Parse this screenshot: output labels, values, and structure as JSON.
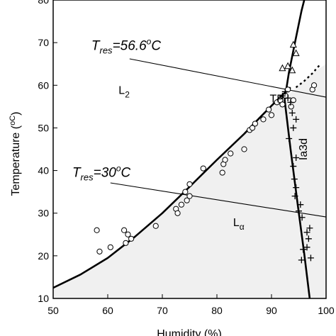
{
  "chart_data": {
    "type": "scatter",
    "xlabel": "Humidity (%)",
    "ylabel": "Temperature (",
    "ylabel_unit": "oC",
    "ylabel_close": ")",
    "xlim": [
      50,
      100
    ],
    "ylim": [
      10,
      80
    ],
    "x_ticks": [
      50,
      60,
      70,
      80,
      90,
      100
    ],
    "y_ticks": [
      10,
      20,
      30,
      40,
      50,
      60,
      70,
      80
    ],
    "grid": false,
    "colors": {
      "fill": "#f0f0f0",
      "line": "#000000",
      "marker": "#000000"
    },
    "regions": [
      {
        "label": "L",
        "sub": "2",
        "x": 63,
        "y": 58
      },
      {
        "label": "L",
        "sub": "α",
        "x": 84,
        "y": 27
      },
      {
        "label": "TP",
        "x": 91,
        "y": 56
      },
      {
        "label": "Ia3d",
        "x": 96.5,
        "y": 45,
        "rotate": true
      }
    ],
    "annotations": [
      {
        "pre": "T",
        "sub": "res",
        "post": "=56.6",
        "sup": "o",
        "end": "C",
        "x": 57,
        "y": 68.3
      },
      {
        "pre": "T",
        "sub": "res",
        "post": "=30",
        "sup": "o",
        "end": "C",
        "x": 53.5,
        "y": 38.5
      }
    ],
    "boundaries": {
      "L2_La": [
        [
          50,
          12.5
        ],
        [
          55,
          15.6
        ],
        [
          60,
          19.5
        ],
        [
          65,
          24.5
        ],
        [
          70,
          30
        ],
        [
          75,
          36.2
        ],
        [
          80,
          42.5
        ],
        [
          85,
          48.6
        ],
        [
          88,
          52.6
        ],
        [
          90,
          55.2
        ],
        [
          92,
          57.7
        ],
        [
          93.5,
          59.5
        ]
      ],
      "L2_right": [
        [
          92.4,
          56.6
        ],
        [
          93.2,
          63
        ],
        [
          94.3,
          70
        ],
        [
          95.5,
          77.5
        ],
        [
          96,
          80
        ]
      ],
      "La_Ia3d": [
        [
          92.4,
          56.6
        ],
        [
          93.5,
          45
        ],
        [
          94.8,
          32
        ],
        [
          96,
          20.5
        ],
        [
          97,
          10
        ]
      ],
      "dashed": [
        [
          94.5,
          59.5
        ],
        [
          96,
          61
        ],
        [
          97.5,
          62.8
        ],
        [
          99,
          65
        ]
      ]
    },
    "tie_lines": [
      {
        "name": "T=56.6",
        "points": [
          [
            64,
            66.2
          ],
          [
            100,
            57.2
          ]
        ]
      },
      {
        "name": "T=30",
        "points": [
          [
            60.5,
            37.1
          ],
          [
            100,
            29.1
          ]
        ]
      }
    ],
    "series": [
      {
        "marker": "circle",
        "points": [
          [
            58,
            26
          ],
          [
            58.5,
            21
          ],
          [
            60.5,
            22
          ],
          [
            63,
            26
          ],
          [
            63.3,
            23
          ],
          [
            63.7,
            25
          ],
          [
            64.3,
            24
          ],
          [
            68.8,
            27
          ],
          [
            72.5,
            31
          ],
          [
            72.8,
            30
          ],
          [
            73.5,
            32
          ],
          [
            74.2,
            35
          ],
          [
            74.5,
            33
          ],
          [
            75,
            34
          ],
          [
            75,
            36.8
          ],
          [
            77.5,
            40.5
          ],
          [
            81,
            39.5
          ],
          [
            81.2,
            41.5
          ],
          [
            81.5,
            42.5
          ],
          [
            82.5,
            44
          ],
          [
            85,
            45
          ],
          [
            86,
            49.5
          ],
          [
            86.5,
            50
          ],
          [
            87,
            51
          ],
          [
            88.5,
            52
          ],
          [
            89.5,
            54.3
          ],
          [
            90,
            53
          ],
          [
            91,
            56
          ],
          [
            91.6,
            56.5
          ],
          [
            92,
            55.5
          ],
          [
            92.6,
            57.5
          ],
          [
            93,
            59
          ],
          [
            93.6,
            55
          ],
          [
            94,
            56.5
          ],
          [
            97.5,
            59
          ],
          [
            97.8,
            60
          ]
        ]
      },
      {
        "marker": "triangle",
        "points": [
          [
            92,
            64
          ],
          [
            93,
            64.5
          ],
          [
            94,
            69.5
          ],
          [
            94.5,
            67.5
          ],
          [
            93.8,
            63.5
          ]
        ]
      },
      {
        "marker": "plus",
        "points": [
          [
            92,
            57.5
          ],
          [
            92.5,
            58.5
          ],
          [
            93,
            57
          ],
          [
            93.5,
            56
          ],
          [
            93.8,
            53.5
          ],
          [
            94.5,
            52
          ],
          [
            94,
            50
          ],
          [
            93.2,
            47.5
          ],
          [
            94.5,
            43
          ],
          [
            94,
            41
          ],
          [
            94.2,
            38
          ],
          [
            94.5,
            36
          ],
          [
            94.3,
            34
          ],
          [
            95,
            30.5
          ],
          [
            95.3,
            32
          ],
          [
            95.6,
            29
          ],
          [
            96.5,
            25.5
          ],
          [
            97,
            26.5
          ],
          [
            96.8,
            24
          ],
          [
            96.5,
            22
          ],
          [
            97.2,
            19.5
          ],
          [
            95.8,
            21.5
          ],
          [
            95.5,
            19
          ]
        ]
      }
    ]
  }
}
